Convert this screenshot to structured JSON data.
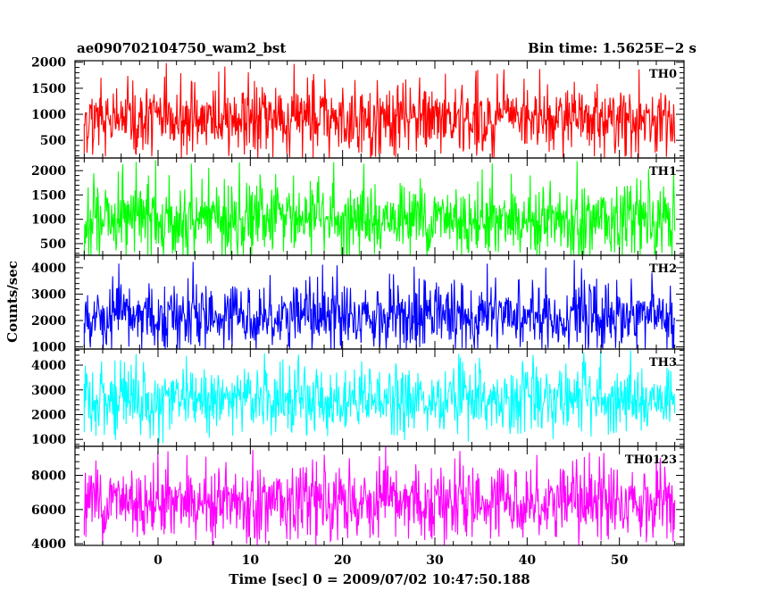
{
  "header": {
    "title": "ae090702104750_wam2_bst",
    "bin_time": "Bin time: 1.5625E−2 s"
  },
  "axes": {
    "ylabel": "Counts/sec",
    "xlabel": "Time [sec] 0 = 2009/07/02 10:47:50.188"
  },
  "chart_data": {
    "type": "line",
    "title": "ae090702104750_wam2_bst",
    "xlabel": "Time [sec] 0 = 2009/07/02 10:47:50.188",
    "ylabel": "Counts/sec",
    "xlim": [
      -9,
      57
    ],
    "x_start": -8,
    "x_end": 56,
    "x_ticks": [
      0,
      10,
      20,
      30,
      40,
      50
    ],
    "panels": [
      {
        "name": "TH0",
        "color": "#ff0000",
        "ylim": [
          160,
          2030
        ],
        "y_ticks": [
          500,
          1000,
          1500,
          2000
        ],
        "mean": 910,
        "low": 250,
        "typical_high": 1600,
        "peak": 2000
      },
      {
        "name": "TH1",
        "color": "#00ff00",
        "ylim": [
          260,
          2260
        ],
        "y_ticks": [
          500,
          1000,
          1500,
          2000
        ],
        "mean": 1000,
        "low": 400,
        "typical_high": 1800,
        "peak": 2200
      },
      {
        "name": "TH2",
        "color": "#0000ff",
        "ylim": [
          920,
          4470
        ],
        "y_ticks": [
          1000,
          2000,
          3000,
          4000
        ],
        "mean": 2200,
        "low": 1000,
        "typical_high": 3500,
        "peak": 4300
      },
      {
        "name": "TH3",
        "color": "#00ffff",
        "ylim": [
          720,
          4650
        ],
        "y_ticks": [
          1000,
          2000,
          3000,
          4000
        ],
        "mean": 2600,
        "low": 1300,
        "typical_high": 4000,
        "peak": 4600
      },
      {
        "name": "TH0123",
        "color": "#ff00ff",
        "ylim": [
          3900,
          9700
        ],
        "y_ticks": [
          4000,
          6000,
          8000
        ],
        "mean": 6500,
        "low": 4500,
        "typical_high": 8800,
        "peak": 9500
      }
    ]
  }
}
